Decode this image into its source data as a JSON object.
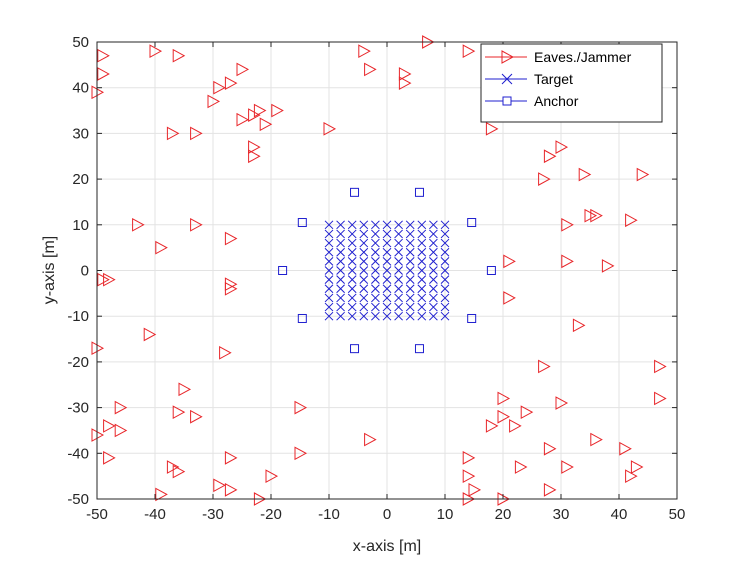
{
  "chart_data": {
    "type": "scatter",
    "xlabel": "x-axis [m]",
    "ylabel": "y-axis [m]",
    "xlim": [
      -50,
      50
    ],
    "ylim": [
      -50,
      50
    ],
    "xticks": [
      "-50",
      "-40",
      "-30",
      "-20",
      "-10",
      "0",
      "10",
      "20",
      "30",
      "40",
      "50"
    ],
    "yticks": [
      "50",
      "40",
      "30",
      "20",
      "10",
      "0",
      "-10",
      "-20",
      "-30",
      "-40",
      "-50"
    ],
    "grid": true,
    "legend_position": "top-right",
    "series": [
      {
        "name": "Eaves./Jammer",
        "marker": "triangle-right",
        "color": "#e8262a",
        "points": [
          [
            -49,
            47
          ],
          [
            -49,
            43
          ],
          [
            -50,
            39
          ],
          [
            -40,
            48
          ],
          [
            -36,
            47
          ],
          [
            -25,
            44
          ],
          [
            -27,
            41
          ],
          [
            -29,
            40
          ],
          [
            -30,
            37
          ],
          [
            -22,
            35
          ],
          [
            -19,
            35
          ],
          [
            -23,
            34
          ],
          [
            -25,
            33
          ],
          [
            -21,
            32
          ],
          [
            -33,
            30
          ],
          [
            -37,
            30
          ],
          [
            -23,
            27
          ],
          [
            -23,
            25
          ],
          [
            -10,
            31
          ],
          [
            -4,
            48
          ],
          [
            -3,
            44
          ],
          [
            3,
            43
          ],
          [
            3,
            41
          ],
          [
            7,
            50
          ],
          [
            14,
            48
          ],
          [
            18,
            31
          ],
          [
            -43,
            10
          ],
          [
            -33,
            10
          ],
          [
            -39,
            5
          ],
          [
            -27,
            7
          ],
          [
            -49,
            -2
          ],
          [
            -48,
            -2
          ],
          [
            -27,
            -3
          ],
          [
            -27,
            -4
          ],
          [
            -41,
            -14
          ],
          [
            -28,
            -18
          ],
          [
            -50,
            -17
          ],
          [
            -35,
            -26
          ],
          [
            -46,
            -30
          ],
          [
            -36,
            -31
          ],
          [
            -33,
            -32
          ],
          [
            -15,
            -30
          ],
          [
            -48,
            -34
          ],
          [
            -46,
            -35
          ],
          [
            -50,
            -36
          ],
          [
            -48,
            -41
          ],
          [
            -37,
            -43
          ],
          [
            -36,
            -44
          ],
          [
            -27,
            -41
          ],
          [
            -15,
            -40
          ],
          [
            -3,
            -37
          ],
          [
            -20,
            -45
          ],
          [
            -29,
            -47
          ],
          [
            -27,
            -48
          ],
          [
            -39,
            -49
          ],
          [
            -22,
            -50
          ],
          [
            30,
            27
          ],
          [
            28,
            25
          ],
          [
            27,
            20
          ],
          [
            34,
            21
          ],
          [
            44,
            21
          ],
          [
            44,
            34
          ],
          [
            31,
            10
          ],
          [
            35,
            12
          ],
          [
            36,
            12
          ],
          [
            42,
            11
          ],
          [
            21,
            2
          ],
          [
            31,
            2
          ],
          [
            38,
            1
          ],
          [
            21,
            -6
          ],
          [
            33,
            -12
          ],
          [
            27,
            -21
          ],
          [
            47,
            -21
          ],
          [
            20,
            -28
          ],
          [
            30,
            -29
          ],
          [
            47,
            -28
          ],
          [
            20,
            -32
          ],
          [
            24,
            -31
          ],
          [
            18,
            -34
          ],
          [
            22,
            -34
          ],
          [
            36,
            -37
          ],
          [
            14,
            -41
          ],
          [
            28,
            -39
          ],
          [
            41,
            -39
          ],
          [
            31,
            -43
          ],
          [
            23,
            -43
          ],
          [
            14,
            -45
          ],
          [
            43,
            -43
          ],
          [
            42,
            -45
          ],
          [
            15,
            -48
          ],
          [
            28,
            -48
          ],
          [
            14,
            -50
          ],
          [
            20,
            -50
          ]
        ]
      },
      {
        "name": "Target",
        "marker": "x",
        "color": "#1f1fcf",
        "grid_x": [
          -10,
          10,
          2
        ],
        "grid_y": [
          -10,
          10,
          2
        ]
      },
      {
        "name": "Anchor",
        "marker": "square",
        "color": "#1f1fcf",
        "points": [
          [
            -5.6,
            17.1
          ],
          [
            5.6,
            17.1
          ],
          [
            -14.6,
            10.5
          ],
          [
            14.6,
            10.5
          ],
          [
            -18,
            0
          ],
          [
            18,
            0
          ],
          [
            -14.6,
            -10.5
          ],
          [
            14.6,
            -10.5
          ],
          [
            -5.6,
            -17.1
          ],
          [
            5.6,
            -17.1
          ]
        ]
      }
    ]
  }
}
